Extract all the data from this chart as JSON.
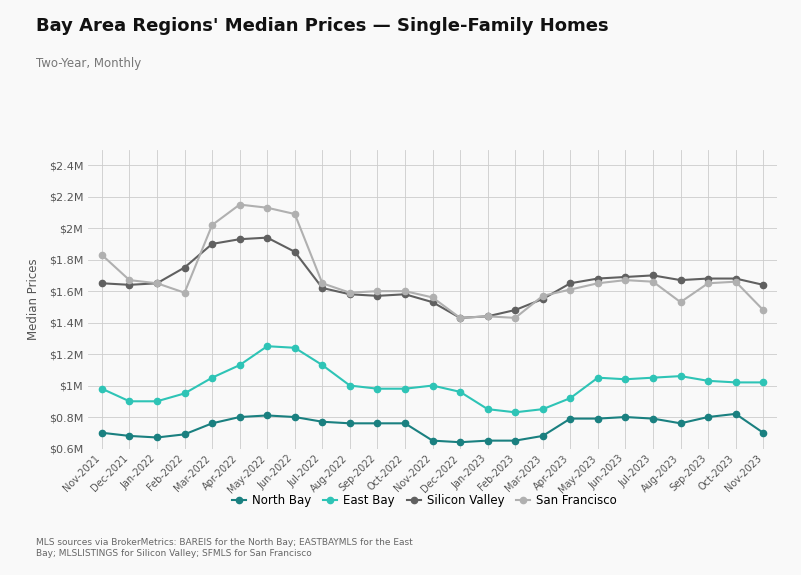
{
  "title": "Bay Area Regions' Median Prices — Single-Family Homes",
  "subtitle": "Two-Year, Monthly",
  "ylabel": "Median Prices",
  "footnote": "MLS sources via BrokerMetrics: BAREIS for the North Bay; EASTBAYMLS for the East\nBay; MLSLISTINGS for Silicon Valley; SFMLS for San Francisco",
  "background_color": "#f9f9f9",
  "plot_bg_color": "#f9f9f9",
  "ylim": [
    600000,
    2500000
  ],
  "yticks": [
    600000,
    800000,
    1000000,
    1200000,
    1400000,
    1600000,
    1800000,
    2000000,
    2200000,
    2400000
  ],
  "x_labels": [
    "Nov-2021",
    "Dec-2021",
    "Jan-2022",
    "Feb-2022",
    "Mar-2022",
    "Apr-2022",
    "May-2022",
    "Jun-2022",
    "Jul-2022",
    "Aug-2022",
    "Sep-2022",
    "Oct-2022",
    "Nov-2022",
    "Dec-2022",
    "Jan-2023",
    "Feb-2023",
    "Mar-2023",
    "Apr-2023",
    "May-2023",
    "Jun-2023",
    "Jul-2023",
    "Aug-2023",
    "Sep-2023",
    "Oct-2023",
    "Nov-2023"
  ],
  "series": {
    "North Bay": {
      "color": "#1a8080",
      "marker": "o",
      "linewidth": 1.5,
      "markersize": 4.5,
      "linestyle": "-",
      "values": [
        700000,
        680000,
        670000,
        690000,
        760000,
        800000,
        810000,
        800000,
        770000,
        760000,
        760000,
        760000,
        650000,
        640000,
        650000,
        650000,
        680000,
        790000,
        790000,
        800000,
        790000,
        760000,
        800000,
        820000,
        700000
      ]
    },
    "East Bay": {
      "color": "#2ec4b6",
      "marker": "o",
      "linewidth": 1.5,
      "markersize": 4.5,
      "linestyle": "-",
      "values": [
        980000,
        900000,
        900000,
        950000,
        1050000,
        1130000,
        1250000,
        1240000,
        1130000,
        1000000,
        980000,
        980000,
        1000000,
        960000,
        850000,
        830000,
        850000,
        920000,
        1050000,
        1040000,
        1050000,
        1060000,
        1030000,
        1020000,
        1020000
      ]
    },
    "Silicon Valley": {
      "color": "#606060",
      "marker": "o",
      "linewidth": 1.5,
      "markersize": 4.5,
      "linestyle": "-",
      "values": [
        1650000,
        1640000,
        1650000,
        1750000,
        1900000,
        1930000,
        1940000,
        1850000,
        1620000,
        1580000,
        1570000,
        1580000,
        1530000,
        1430000,
        1440000,
        1480000,
        1550000,
        1650000,
        1680000,
        1690000,
        1700000,
        1670000,
        1680000,
        1680000,
        1640000
      ]
    },
    "San Francisco": {
      "color": "#b0b0b0",
      "marker": "o",
      "linewidth": 1.5,
      "markersize": 4.5,
      "linestyle": "-",
      "values": [
        1830000,
        1670000,
        1650000,
        1590000,
        2020000,
        2150000,
        2130000,
        2090000,
        1650000,
        1590000,
        1600000,
        1600000,
        1560000,
        1430000,
        1440000,
        1430000,
        1570000,
        1610000,
        1650000,
        1670000,
        1660000,
        1530000,
        1650000,
        1660000,
        1480000
      ]
    }
  }
}
